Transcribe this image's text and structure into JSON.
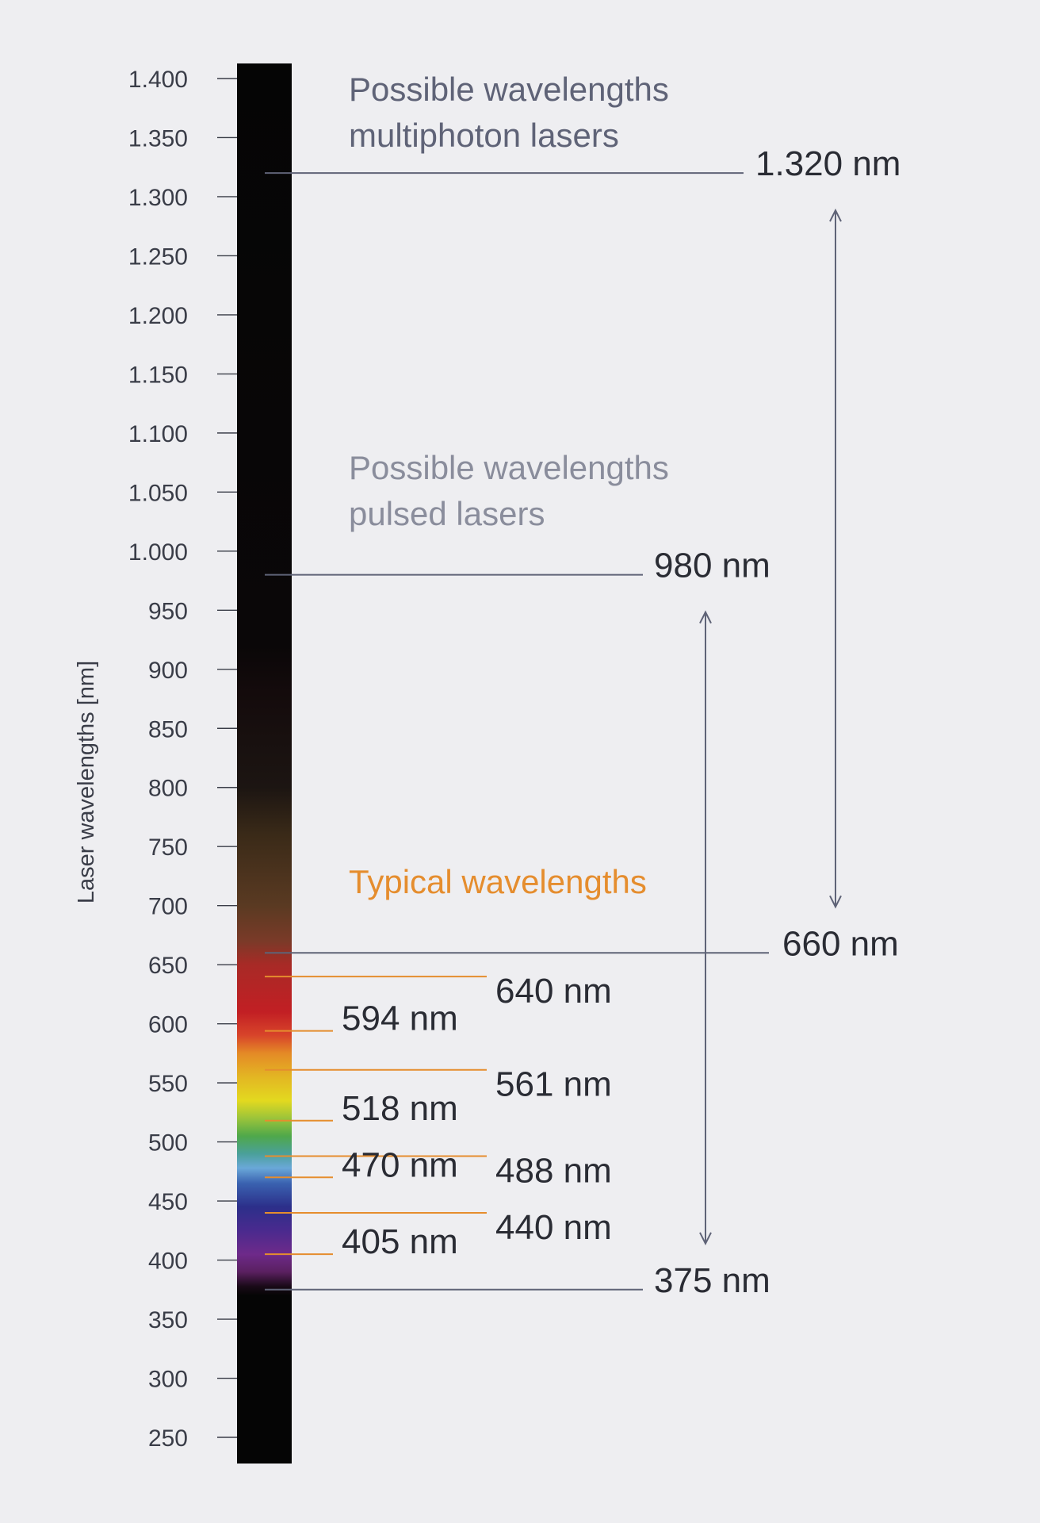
{
  "axis": {
    "label": "Laser wavelengths [nm]",
    "ticks": [
      "1.400",
      "1.350",
      "1.300",
      "1.250",
      "1.200",
      "1.150",
      "1.100",
      "1.050",
      "1.000",
      "950",
      "900",
      "850",
      "800",
      "750",
      "700",
      "650",
      "600",
      "550",
      "500",
      "450",
      "400",
      "350",
      "300",
      "250"
    ],
    "min": 250,
    "max": 1400
  },
  "groups": {
    "multiphoton": {
      "line1": "Possible wavelengths",
      "line2": "multiphoton lasers",
      "color": "#5f6377"
    },
    "pulsed": {
      "line1": "Possible wavelengths",
      "line2": "pulsed lasers",
      "color": "#8a8d9c"
    },
    "typical": {
      "label": "Typical wavelengths",
      "color": "#e58d2e"
    }
  },
  "range_lines": [
    {
      "value": 1320,
      "label": "1.320 nm"
    },
    {
      "value": 980,
      "label": "980 nm"
    },
    {
      "value": 660,
      "label": "660 nm"
    },
    {
      "value": 375,
      "label": "375 nm"
    }
  ],
  "typical_lines": [
    {
      "value": 640,
      "label": "640 nm"
    },
    {
      "value": 594,
      "label": "594 nm"
    },
    {
      "value": 561,
      "label": "561 nm"
    },
    {
      "value": 518,
      "label": "518 nm"
    },
    {
      "value": 488,
      "label": "488 nm"
    },
    {
      "value": 470,
      "label": "470 nm"
    },
    {
      "value": 440,
      "label": "440 nm"
    },
    {
      "value": 405,
      "label": "405 nm"
    }
  ],
  "ranges": [
    {
      "name": "multiphoton",
      "from": 660,
      "to": 1320
    },
    {
      "name": "pulsed",
      "from": 375,
      "to": 980
    }
  ],
  "colors": {
    "background": "#eeeef1",
    "axis_text": "#3a3d48",
    "range_line": "#5f6377",
    "typical_line": "#e58d2e",
    "label_text": "#2a2c34"
  }
}
